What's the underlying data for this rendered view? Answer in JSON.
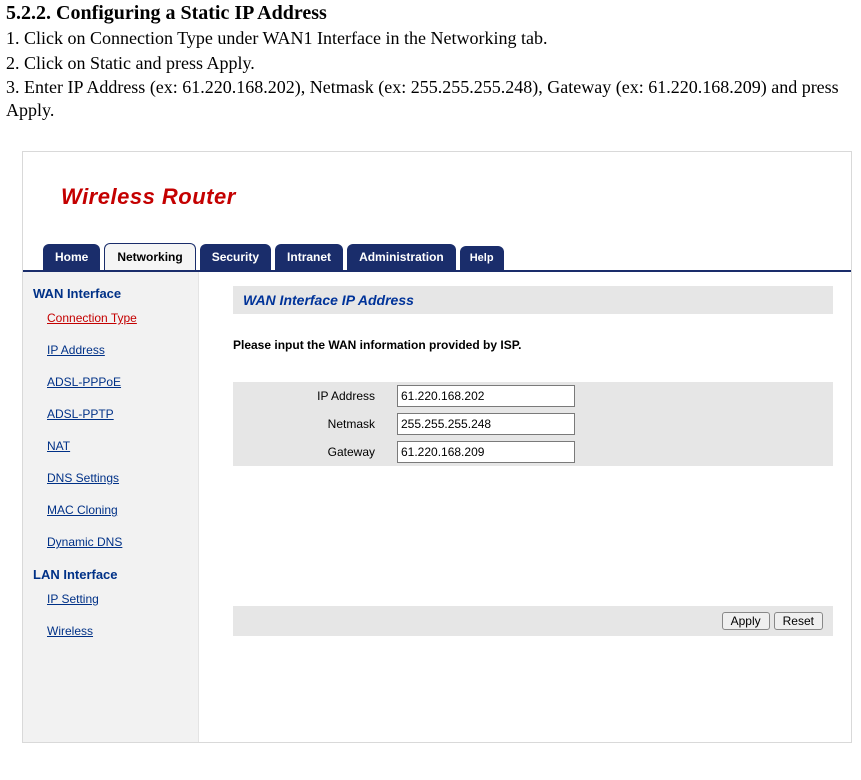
{
  "doc": {
    "heading": "5.2.2. Configuring a Static IP Address",
    "step1": "1. Click on Connection Type under WAN1 Interface in the Networking tab.",
    "step2": "2. Click on Static and press Apply.",
    "step3": "3. Enter IP Address (ex: 61.220.168.202), Netmask (ex: 255.255.255.248), Gateway (ex: 61.220.168.209) and press Apply."
  },
  "router": {
    "brand": "Wireless Router",
    "tabs": {
      "home": "Home",
      "networking": "Networking",
      "security": "Security",
      "intranet": "Intranet",
      "administration": "Administration",
      "help": "Help"
    },
    "sidebar": {
      "wan_section": "WAN Interface",
      "connection_type": "Connection Type",
      "ip_address": "IP Address",
      "adsl_pppoe": "ADSL-PPPoE",
      "adsl_pptp": "ADSL-PPTP",
      "nat": "NAT",
      "dns_settings": "DNS Settings",
      "mac_cloning": "MAC Cloning",
      "dynamic_dns": "Dynamic DNS",
      "lan_section": "LAN Interface",
      "ip_setting": "IP Setting",
      "wireless": "Wireless"
    },
    "panel": {
      "title": "WAN Interface IP Address",
      "note": "Please input the WAN information provided by ISP.",
      "ip_label": "IP Address",
      "ip_value": "61.220.168.202",
      "netmask_label": "Netmask",
      "netmask_value": "255.255.255.248",
      "gateway_label": "Gateway",
      "gateway_value": "61.220.168.209",
      "apply": "Apply",
      "reset": "Reset"
    }
  },
  "colors": {
    "brand_red": "#c40000",
    "nav_blue": "#1a2d6b",
    "link_blue": "#003187",
    "panel_gray": "#e6e6e6",
    "sidebar_bg": "#f2f2f2"
  }
}
